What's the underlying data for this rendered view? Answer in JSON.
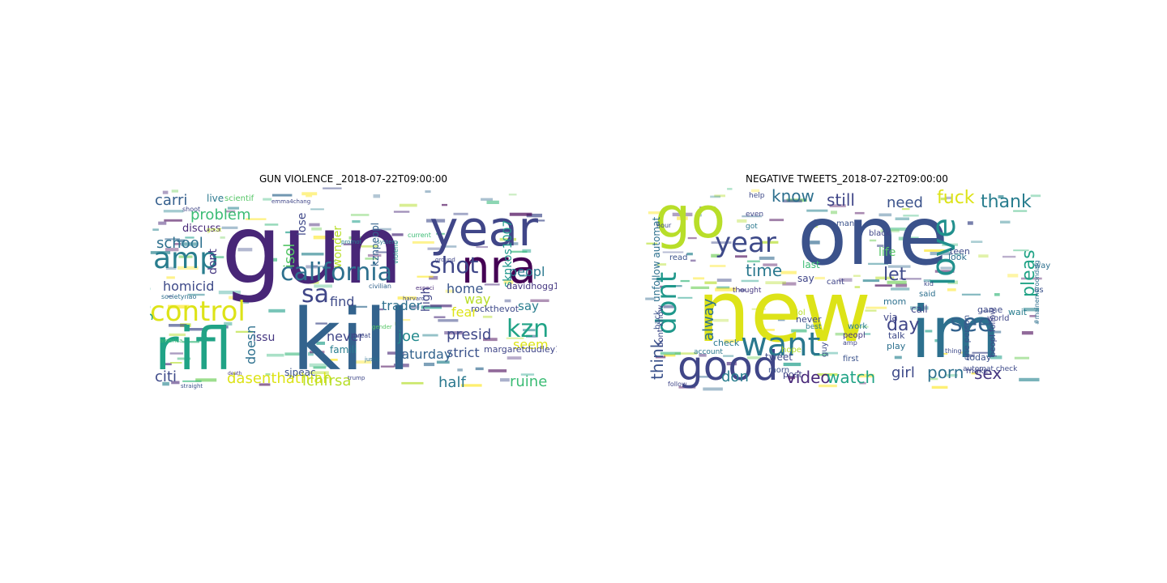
{
  "panels": [
    {
      "title": "GUN VIOLENCE _2018-07-22T09:00:00",
      "words": [
        {
          "text": "gun",
          "color": "#482677"
        },
        {
          "text": "kill",
          "color": "#33638d"
        },
        {
          "text": "year",
          "color": "#404688"
        },
        {
          "text": "nra",
          "color": "#440154"
        },
        {
          "text": "rifl",
          "color": "#20a386"
        },
        {
          "text": "amp",
          "color": "#287d8e"
        },
        {
          "text": "california",
          "color": "#2d708e"
        },
        {
          "text": "control",
          "color": "#dde318"
        },
        {
          "text": "shot",
          "color": "#3f4788"
        },
        {
          "text": "sa",
          "color": "#404688"
        },
        {
          "text": "school",
          "color": "#2d708e"
        },
        {
          "text": "problem",
          "color": "#3cbc75"
        },
        {
          "text": "carri",
          "color": "#355f8d"
        },
        {
          "text": "homicid",
          "color": "#3e4a89"
        },
        {
          "text": "discuss",
          "color": "#482878"
        },
        {
          "text": "live",
          "color": "#2a788e"
        },
        {
          "text": "dont",
          "color": "#453781"
        },
        {
          "text": "isol",
          "color": "#56c667"
        },
        {
          "text": "lose",
          "color": "#3f4889"
        },
        {
          "text": "wonder",
          "color": "#b8de29"
        },
        {
          "text": "sknkos1007",
          "color": "#1f988b"
        },
        {
          "text": "kznpeopl",
          "color": "#33638d"
        },
        {
          "text": "home",
          "color": "#39568c"
        },
        {
          "text": "davidhogg111",
          "color": "#453781"
        },
        {
          "text": "peopl",
          "color": "#2a788e"
        },
        {
          "text": "fear",
          "color": "#dde318"
        },
        {
          "text": "kzn",
          "color": "#20a386"
        },
        {
          "text": "say",
          "color": "#287d8e"
        },
        {
          "text": "way",
          "color": "#b8de29"
        },
        {
          "text": "find",
          "color": "#3e4a89"
        },
        {
          "text": "trader",
          "color": "#2d708e"
        },
        {
          "text": "rockthevot",
          "color": "#3e4989"
        },
        {
          "text": "gener",
          "color": "#20a386"
        },
        {
          "text": "high",
          "color": "#404688"
        },
        {
          "text": "joe",
          "color": "#238a8d"
        },
        {
          "text": "presid",
          "color": "#3f4889"
        },
        {
          "text": "strict",
          "color": "#3b528b"
        },
        {
          "text": "seem",
          "color": "#dde318"
        },
        {
          "text": "never",
          "color": "#404688"
        },
        {
          "text": "famili",
          "color": "#287d8e"
        },
        {
          "text": "issu",
          "color": "#453781"
        },
        {
          "text": "doesn",
          "color": "#2d708e"
        },
        {
          "text": "saturday",
          "color": "#33638d"
        },
        {
          "text": "citi",
          "color": "#3e4a89"
        },
        {
          "text": "dasenthathiah",
          "color": "#dde318"
        },
        {
          "text": "lchfrsa",
          "color": "#b8de29"
        },
        {
          "text": "half",
          "color": "#2a788e"
        },
        {
          "text": "ruine",
          "color": "#3cbc75"
        },
        {
          "text": "sjpeac",
          "color": "#3b528b"
        },
        {
          "text": "margaretdudley1",
          "color": "#404688"
        },
        {
          "text": "scientif",
          "color": "#56c667"
        },
        {
          "text": "emma4chang",
          "color": "#404688"
        },
        {
          "text": "societynao",
          "color": "#2d708e"
        },
        {
          "text": "america",
          "color": "#3cbc75"
        },
        {
          "text": "shoot",
          "color": "#404688"
        },
        {
          "text": "great",
          "color": "#b8de29"
        },
        {
          "text": "civilian",
          "color": "#33638d"
        },
        {
          "text": "especi",
          "color": "#482878"
        },
        {
          "text": "justic",
          "color": "#2d708e"
        },
        {
          "text": "trump",
          "color": "#3f4889"
        },
        {
          "text": "promot",
          "color": "#287d8e"
        },
        {
          "text": "threat",
          "color": "#3e4a89"
        },
        {
          "text": "violenc",
          "color": "#1f988b"
        },
        {
          "text": "ground",
          "color": "#404688"
        },
        {
          "text": "current",
          "color": "#3cbc75"
        },
        {
          "text": "system",
          "color": "#2a788e"
        },
        {
          "text": "harvard",
          "color": "#3e4a89"
        },
        {
          "text": "straight",
          "color": "#3b528b"
        },
        {
          "text": "death",
          "color": "#453781"
        },
        {
          "text": "gender",
          "color": "#56c667"
        }
      ]
    },
    {
      "title": "NEGATIVE TWEETS_2018-07-22T09:00:00",
      "words": [
        {
          "text": "one",
          "color": "#3b528b"
        },
        {
          "text": "new",
          "color": "#dde318"
        },
        {
          "text": "im",
          "color": "#2d708e"
        },
        {
          "text": "go",
          "color": "#b8de29"
        },
        {
          "text": "love",
          "color": "#21908d"
        },
        {
          "text": "good",
          "color": "#404688"
        },
        {
          "text": "want",
          "color": "#2a788e"
        },
        {
          "text": "year",
          "color": "#3e4a89"
        },
        {
          "text": "dont",
          "color": "#1f988b"
        },
        {
          "text": "see",
          "color": "#33638d"
        },
        {
          "text": "know",
          "color": "#2d708e"
        },
        {
          "text": "still",
          "color": "#404688"
        },
        {
          "text": "need",
          "color": "#3b528b"
        },
        {
          "text": "fuck",
          "color": "#dde318"
        },
        {
          "text": "thank",
          "color": "#287d8e"
        },
        {
          "text": "time",
          "color": "#2a788e"
        },
        {
          "text": "pleas",
          "color": "#20a386"
        },
        {
          "text": "let",
          "color": "#3e4a89"
        },
        {
          "text": "day",
          "color": "#404688"
        },
        {
          "text": "think",
          "color": "#3b528b"
        },
        {
          "text": "alway",
          "color": "#2d708e"
        },
        {
          "text": "don",
          "color": "#287d8e"
        },
        {
          "text": "video",
          "color": "#482878"
        },
        {
          "text": "watch",
          "color": "#20a386"
        },
        {
          "text": "girl",
          "color": "#3e4a89"
        },
        {
          "text": "porn",
          "color": "#2d708e"
        },
        {
          "text": "sex",
          "color": "#453781"
        },
        {
          "text": "help",
          "color": "#3e4a89"
        },
        {
          "text": "even",
          "color": "#404688"
        },
        {
          "text": "got",
          "color": "#2a788e"
        },
        {
          "text": "thought",
          "color": "#453781"
        },
        {
          "text": "man",
          "color": "#3b528b"
        },
        {
          "text": "black",
          "color": "#404688"
        },
        {
          "text": "teen",
          "color": "#3e4a89"
        },
        {
          "text": "look",
          "color": "#2d708e"
        },
        {
          "text": "life",
          "color": "#56c667"
        },
        {
          "text": "last",
          "color": "#3cbc75"
        },
        {
          "text": "say",
          "color": "#404688"
        },
        {
          "text": "never",
          "color": "#3e4a89"
        },
        {
          "text": "make",
          "color": "#404688"
        },
        {
          "text": "today",
          "color": "#3b528b"
        },
        {
          "text": "call",
          "color": "#404688"
        },
        {
          "text": "game",
          "color": "#3e4a89"
        },
        {
          "text": "wait",
          "color": "#287d8e"
        },
        {
          "text": "mom",
          "color": "#2d708e"
        },
        {
          "text": "via",
          "color": "#404688"
        },
        {
          "text": "talk",
          "color": "#3e4a89"
        },
        {
          "text": "play",
          "color": "#2d708e"
        },
        {
          "text": "tweet",
          "color": "#3e4a89"
        },
        {
          "text": "post",
          "color": "#404688"
        },
        {
          "text": "morn",
          "color": "#3b528b"
        },
        {
          "text": "hope",
          "color": "#b8de29"
        },
        {
          "text": "check",
          "color": "#2a788e"
        },
        {
          "text": "automat check",
          "color": "#3e4a89"
        },
        {
          "text": "unfollow automat",
          "color": "#2d708e"
        },
        {
          "text": "dont know",
          "color": "#3e4a89"
        },
        {
          "text": "one person",
          "color": "#3b528b"
        },
        {
          "text": "peopl follow",
          "color": "#404688"
        },
        {
          "text": "account",
          "color": "#2a788e"
        },
        {
          "text": "back",
          "color": "#3b528b"
        },
        {
          "text": "follow",
          "color": "#404688"
        },
        {
          "text": "kid",
          "color": "#3e4a89"
        },
        {
          "text": "said",
          "color": "#2d708e"
        },
        {
          "text": "work",
          "color": "#287d8e"
        },
        {
          "text": "peopl",
          "color": "#453781"
        },
        {
          "text": "first",
          "color": "#3b528b"
        },
        {
          "text": "guy",
          "color": "#3e4a89"
        },
        {
          "text": "best",
          "color": "#2a788e"
        },
        {
          "text": "world",
          "color": "#404688"
        },
        {
          "text": "read",
          "color": "#3b528b"
        },
        {
          "text": "cant",
          "color": "#404688"
        },
        {
          "text": "hour",
          "color": "#3e4a89"
        },
        {
          "text": "way",
          "color": "#2d708e"
        },
        {
          "text": "thing",
          "color": "#3e4a89"
        },
        {
          "text": "amp",
          "color": "#404688"
        },
        {
          "text": "lol",
          "color": "#b8de29"
        },
        {
          "text": "us",
          "color": "#3b528b"
        },
        {
          "text": "#mainemeroondaig",
          "color": "#2d708e"
        }
      ]
    }
  ]
}
